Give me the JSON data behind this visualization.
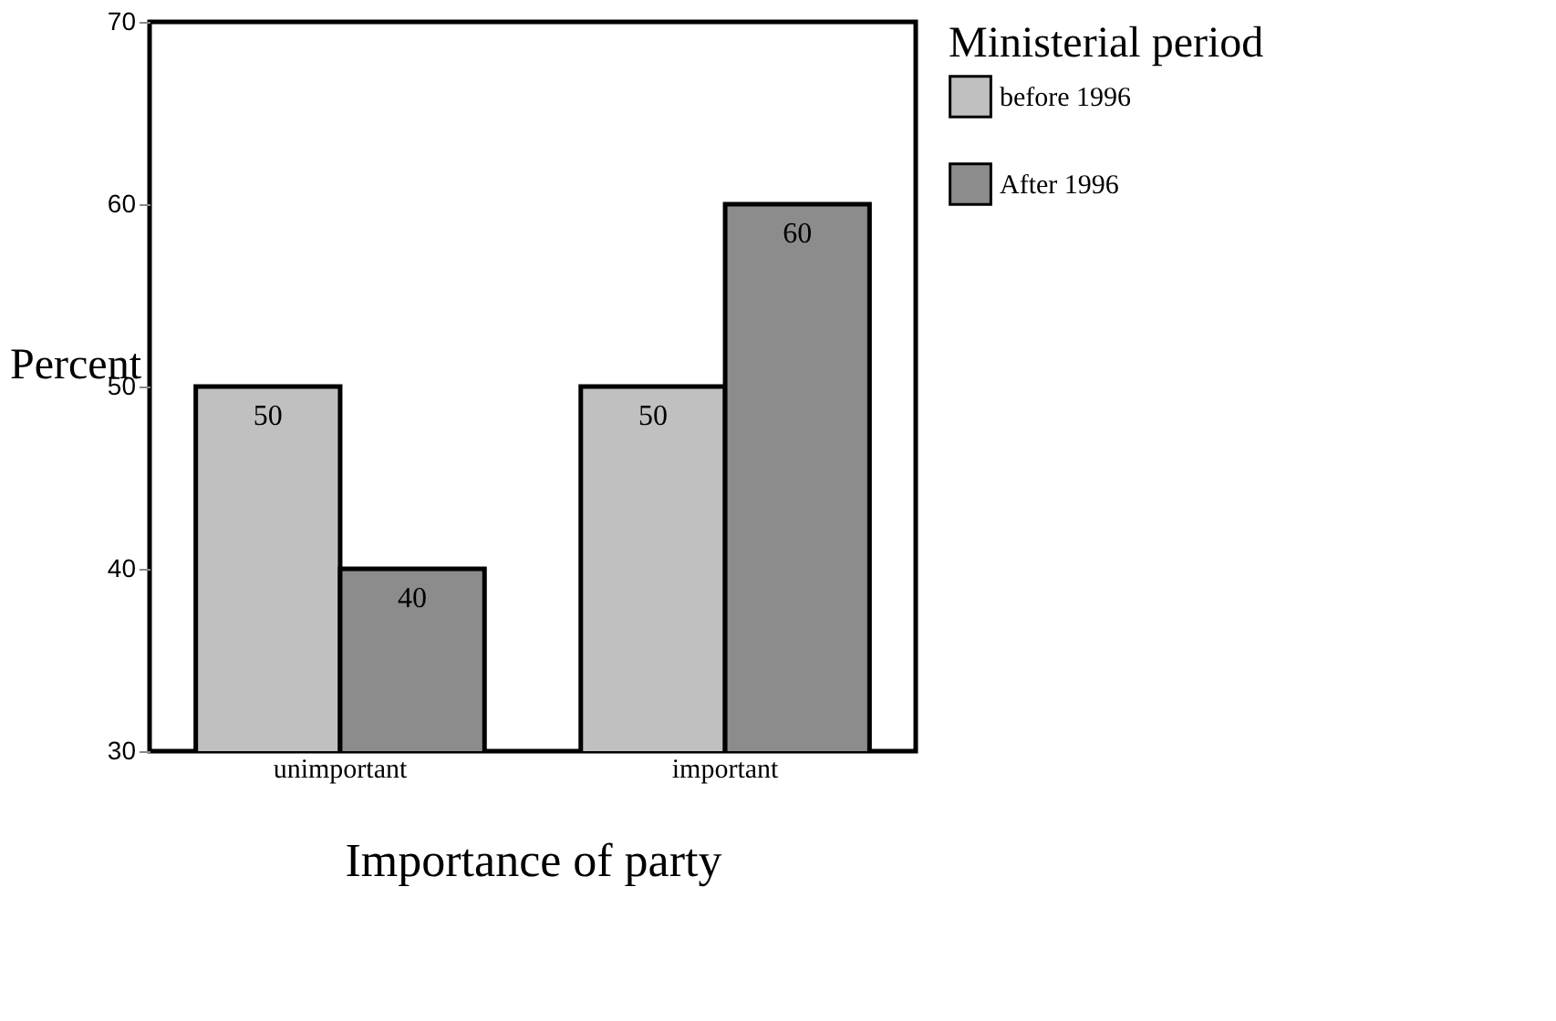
{
  "chart_data": {
    "type": "bar",
    "xlabel": "Importance of party",
    "ylabel": "Percent",
    "legend_title": "Ministerial period",
    "categories": [
      "unimportant",
      "important"
    ],
    "series": [
      {
        "name": "before 1996",
        "color": "#c0c0c0",
        "values": [
          50,
          50
        ]
      },
      {
        "name": "After 1996",
        "color": "#8c8c8c",
        "values": [
          40,
          60
        ]
      }
    ],
    "ylim": [
      30,
      70
    ],
    "yticks": [
      30,
      40,
      50,
      60,
      70
    ],
    "data_labels": true,
    "grid": false,
    "legend": "right"
  }
}
